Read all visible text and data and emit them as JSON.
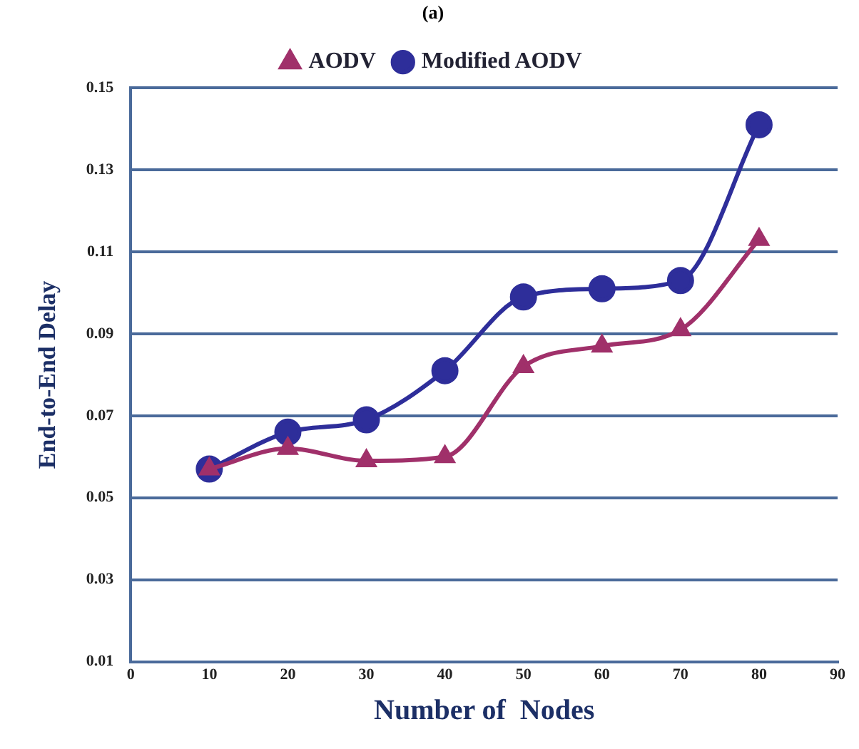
{
  "chart_data": {
    "type": "line",
    "title": "(a)",
    "xlabel": "Number of  Nodes",
    "ylabel": "End-to-End Delay",
    "x": [
      10,
      20,
      30,
      40,
      50,
      60,
      70,
      80
    ],
    "series": [
      {
        "name": "AODV",
        "color": "#a0306a",
        "marker": "triangle",
        "values": [
          0.057,
          0.062,
          0.059,
          0.06,
          0.082,
          0.087,
          0.091,
          0.113
        ]
      },
      {
        "name": "Modified AODV",
        "color": "#2e2e9a",
        "marker": "circle",
        "values": [
          0.057,
          0.066,
          0.069,
          0.081,
          0.099,
          0.101,
          0.103,
          0.141
        ]
      }
    ],
    "xlim": [
      0,
      90
    ],
    "xticks": [
      0,
      10,
      20,
      30,
      40,
      50,
      60,
      70,
      80,
      90
    ],
    "ylim": [
      0.01,
      0.15
    ],
    "yticks": [
      0.01,
      0.03,
      0.05,
      0.07,
      0.09,
      0.11,
      0.13,
      0.15
    ],
    "grid": "y",
    "legend": "top",
    "line_style": "solid"
  }
}
